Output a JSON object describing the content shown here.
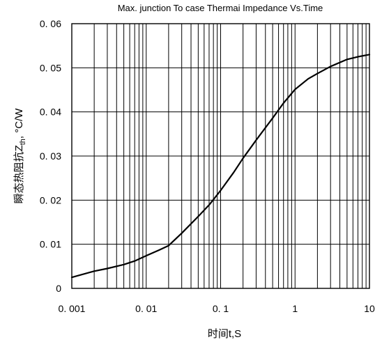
{
  "chart_data": {
    "type": "line",
    "title": "Max. junction To case Thermai Impedance Vs.Time",
    "xlabel": "时间t,S",
    "ylabel": {
      "prefix": "瞬态热阻抗Z",
      "subscript": "th",
      "suffix": ", °C/W"
    },
    "x_scale": "log",
    "xlim": [
      0.001,
      10
    ],
    "ylim": [
      0,
      0.06
    ],
    "grid": true,
    "x_ticks": [
      {
        "value": 0.001,
        "label": "0. 001"
      },
      {
        "value": 0.01,
        "label": "0. 01"
      },
      {
        "value": 0.1,
        "label": "0. 1"
      },
      {
        "value": 1,
        "label": "1"
      },
      {
        "value": 10,
        "label": "10"
      }
    ],
    "y_ticks": [
      {
        "value": 0,
        "label": "0"
      },
      {
        "value": 0.01,
        "label": "0. 01"
      },
      {
        "value": 0.02,
        "label": "0. 02"
      },
      {
        "value": 0.03,
        "label": "0. 03"
      },
      {
        "value": 0.04,
        "label": "0. 04"
      },
      {
        "value": 0.05,
        "label": "0. 05"
      },
      {
        "value": 0.06,
        "label": "0. 06"
      }
    ],
    "series": [
      {
        "x": [
          0.001,
          0.002,
          0.003,
          0.005,
          0.007,
          0.01,
          0.015,
          0.02,
          0.03,
          0.05,
          0.07,
          0.1,
          0.15,
          0.2,
          0.3,
          0.5,
          0.7,
          1,
          1.5,
          2,
          3,
          5,
          7,
          10
        ],
        "y": [
          0.0025,
          0.0039,
          0.0045,
          0.0054,
          0.0062,
          0.0074,
          0.0087,
          0.0097,
          0.0125,
          0.0163,
          0.0189,
          0.0222,
          0.0263,
          0.0295,
          0.0336,
          0.0386,
          0.042,
          0.0451,
          0.0475,
          0.0487,
          0.0503,
          0.0519,
          0.0525,
          0.053
        ]
      }
    ]
  }
}
